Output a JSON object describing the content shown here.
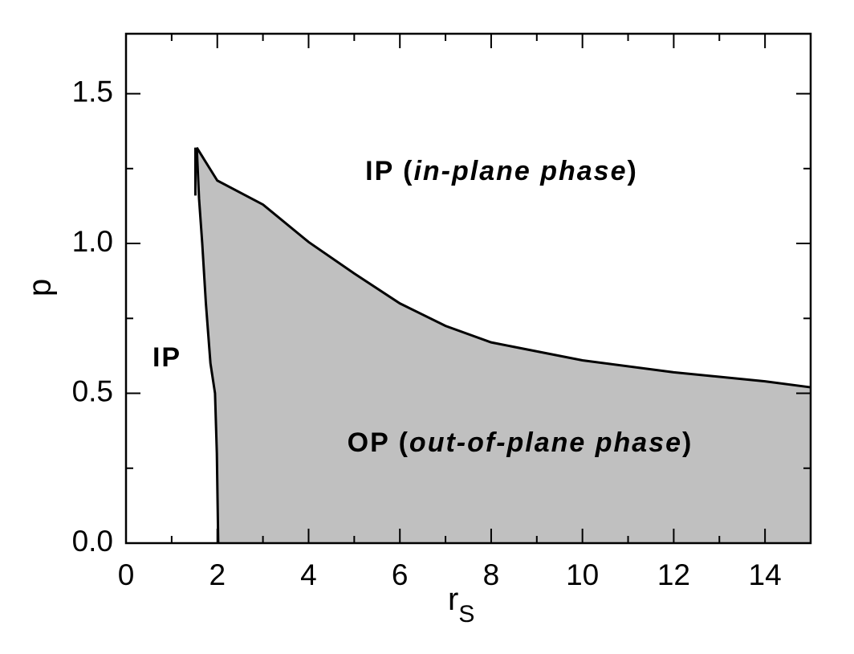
{
  "chart_data": {
    "type": "area",
    "xlabel": {
      "text": "r",
      "subscript": "S"
    },
    "ylabel": "p",
    "xlim": [
      0,
      15
    ],
    "ylim": [
      0,
      1.7
    ],
    "xticks": [
      0,
      2,
      4,
      6,
      8,
      10,
      12,
      14
    ],
    "xminor_ticks": [
      1,
      3,
      5,
      7,
      9,
      11,
      13,
      15
    ],
    "yticks": [
      {
        "value": 0,
        "label": "0.0"
      },
      0.5,
      {
        "value": 1,
        "label": "1.0"
      },
      1.5
    ],
    "yminor_ticks": [
      0.25,
      0.75,
      1.25
    ],
    "fill_color": "#c0c0c0",
    "line_color": "#000000",
    "series": [
      {
        "x": [
          1.55,
          2,
          3,
          4,
          5,
          6,
          7,
          8,
          10,
          12,
          14,
          15
        ],
        "values": [
          1.32,
          1.21,
          1.13,
          1.005,
          0.9,
          0.8,
          0.725,
          0.67,
          0.61,
          0.57,
          0.54,
          0.52
        ]
      },
      {
        "x": [
          1.55,
          1.6,
          1.67,
          1.75,
          1.85,
          1.95,
          1.99,
          2.02
        ],
        "values": [
          1.32,
          1.15,
          1.0,
          0.8,
          0.6,
          0.5,
          0.3,
          0
        ]
      },
      {
        "x": [
          1.52,
          1.52
        ],
        "values": [
          1.32,
          1.16
        ]
      }
    ],
    "annotations": [
      {
        "parts": [
          "IP (",
          "in-plane phase",
          ")"
        ]
      },
      {
        "parts": [
          "IP"
        ]
      },
      {
        "parts": [
          "OP (",
          "out-of-plane phase",
          ")"
        ]
      }
    ]
  }
}
